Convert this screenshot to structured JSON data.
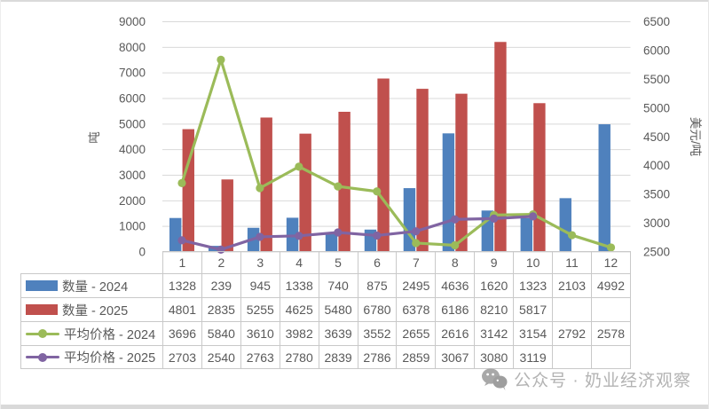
{
  "watermark": {
    "label": "公众号 · 奶业经济观察",
    "icon": "wechat-icon",
    "color": "#b3b3b3"
  },
  "chart_data": {
    "type": "combo-bar-line",
    "title": "",
    "categories": [
      "1",
      "2",
      "3",
      "4",
      "5",
      "6",
      "7",
      "8",
      "9",
      "10",
      "11",
      "12"
    ],
    "series": [
      {
        "id": "quantity-2024",
        "name": "数量 - 2024",
        "type": "bar",
        "axis": "left",
        "color": "#4F81BD",
        "values": [
          1328,
          239,
          945,
          1338,
          740,
          875,
          2495,
          4636,
          1620,
          1323,
          2103,
          4992
        ]
      },
      {
        "id": "quantity-2025",
        "name": "数量 - 2025",
        "type": "bar",
        "axis": "left",
        "color": "#C0504D",
        "values": [
          4801,
          2835,
          5255,
          4625,
          5480,
          6780,
          6378,
          6186,
          8210,
          5817,
          null,
          null
        ]
      },
      {
        "id": "avg-price-2024",
        "name": "平均价格 - 2024",
        "type": "line",
        "axis": "right",
        "color": "#9BBB59",
        "values": [
          3696,
          5840,
          3610,
          3982,
          3639,
          3552,
          2655,
          2616,
          3142,
          3154,
          2792,
          2578
        ]
      },
      {
        "id": "avg-price-2025",
        "name": "平均价格 - 2025",
        "type": "line",
        "axis": "right",
        "color": "#8064A2",
        "values": [
          2703,
          2540,
          2763,
          2780,
          2839,
          2786,
          2859,
          3067,
          3080,
          3119,
          null,
          null
        ]
      }
    ],
    "left_axis": {
      "title": "吨",
      "min": 0,
      "max": 9000,
      "step": 1000
    },
    "right_axis": {
      "title": "美元/吨",
      "min": 2500,
      "max": 6500,
      "step": 500
    },
    "grid": "horizontal",
    "legend_position": "data-table-left",
    "colors": {
      "gridline": "#D9D9D9",
      "axis_text": "#595959",
      "table_border": "#C9C9C9",
      "table_text": "#595959"
    }
  }
}
